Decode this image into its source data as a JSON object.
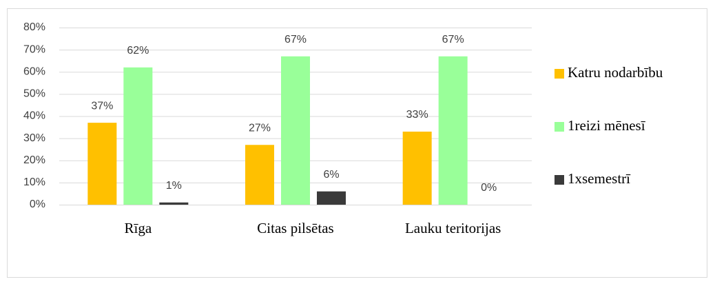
{
  "chart_data": {
    "type": "bar",
    "categories": [
      "Rīga",
      "Citas pilsētas",
      "Lauku teritorijas"
    ],
    "series": [
      {
        "name": "Katru nodarbību",
        "color": "#ffc000",
        "values": [
          37,
          27,
          33
        ],
        "value_labels": [
          "37%",
          "27%",
          "33%"
        ]
      },
      {
        "name": "1reizi mēnesī",
        "color": "#99ff99",
        "values": [
          62,
          67,
          67
        ],
        "value_labels": [
          "62%",
          "67%",
          "67%"
        ]
      },
      {
        "name": "1xsemestrī",
        "color": "#3a3a3a",
        "values": [
          1,
          6,
          0
        ],
        "value_labels": [
          "1%",
          "6%",
          "0%"
        ]
      }
    ],
    "ylim": [
      0,
      80
    ],
    "yticks": [
      {
        "value": 0,
        "label": "0%"
      },
      {
        "value": 10,
        "label": "10%"
      },
      {
        "value": 20,
        "label": "20%"
      },
      {
        "value": 30,
        "label": "30%"
      },
      {
        "value": 40,
        "label": "40%"
      },
      {
        "value": 50,
        "label": "50%"
      },
      {
        "value": 60,
        "label": "60%"
      },
      {
        "value": 70,
        "label": "70%"
      },
      {
        "value": 80,
        "label": "80%"
      }
    ],
    "grid": true,
    "legend": "right"
  }
}
